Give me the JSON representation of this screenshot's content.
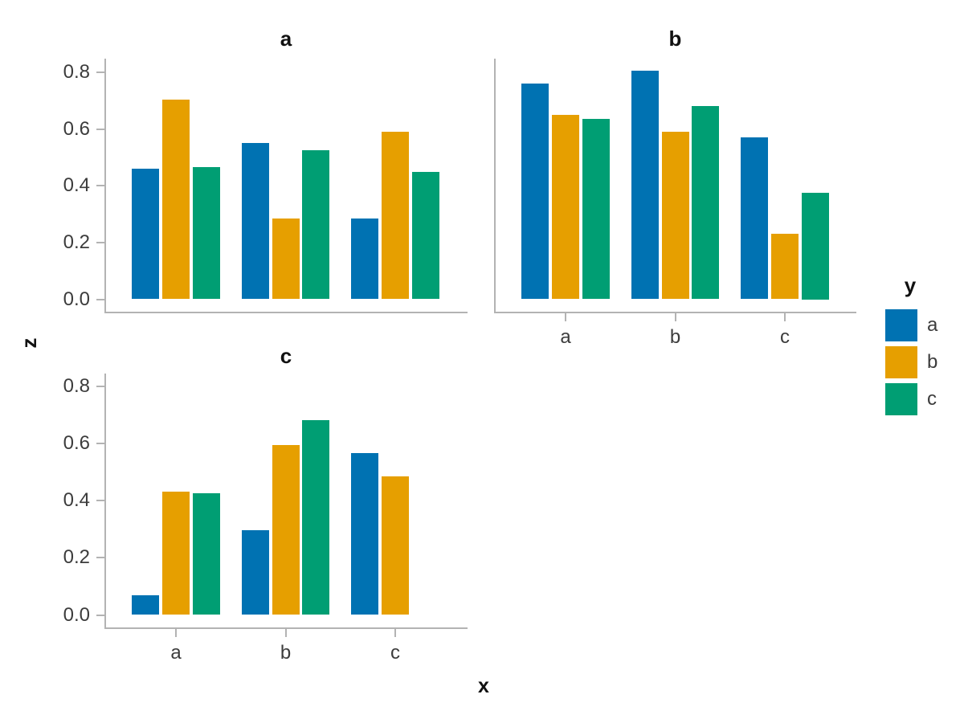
{
  "figure": {
    "ylabel": "z",
    "xlabel": "x",
    "legend": {
      "title": "y",
      "entries": [
        {
          "label": "a",
          "color": "#0072B2"
        },
        {
          "label": "b",
          "color": "#E69F00"
        },
        {
          "label": "c",
          "color": "#009E73"
        }
      ]
    },
    "axis_color": "#b3b3b3",
    "tick_label_color": "#3c3c3c"
  },
  "chart_data": {
    "type": "bar",
    "layout": "faceted-grouped",
    "categories": [
      "a",
      "b",
      "c"
    ],
    "series_names": [
      "a",
      "b",
      "c"
    ],
    "ylim": [
      0,
      0.85
    ],
    "yticks": [
      0.0,
      0.2,
      0.4,
      0.6,
      0.8
    ],
    "grid": "off",
    "legend_position": "right",
    "facets": [
      {
        "title": "a",
        "show_x_labels": false,
        "show_y_labels": true,
        "series": [
          {
            "name": "a",
            "values": [
              0.46,
              0.55,
              0.285
            ]
          },
          {
            "name": "b",
            "values": [
              0.705,
              0.285,
              0.59
            ]
          },
          {
            "name": "c",
            "values": [
              0.465,
              0.525,
              0.45
            ]
          }
        ]
      },
      {
        "title": "b",
        "show_x_labels": true,
        "show_y_labels": false,
        "series": [
          {
            "name": "a",
            "values": [
              0.76,
              0.805,
              0.57
            ]
          },
          {
            "name": "b",
            "values": [
              0.65,
              0.59,
              0.23
            ]
          },
          {
            "name": "c",
            "values": [
              0.635,
              0.68,
              0.375
            ]
          }
        ]
      },
      {
        "title": "c",
        "show_x_labels": true,
        "show_y_labels": true,
        "series": [
          {
            "name": "a",
            "values": [
              0.07,
              0.295,
              0.565
            ]
          },
          {
            "name": "b",
            "values": [
              0.43,
              0.595,
              0.485
            ]
          },
          {
            "name": "c",
            "values": [
              0.425,
              0.68,
              null
            ]
          }
        ]
      }
    ]
  }
}
